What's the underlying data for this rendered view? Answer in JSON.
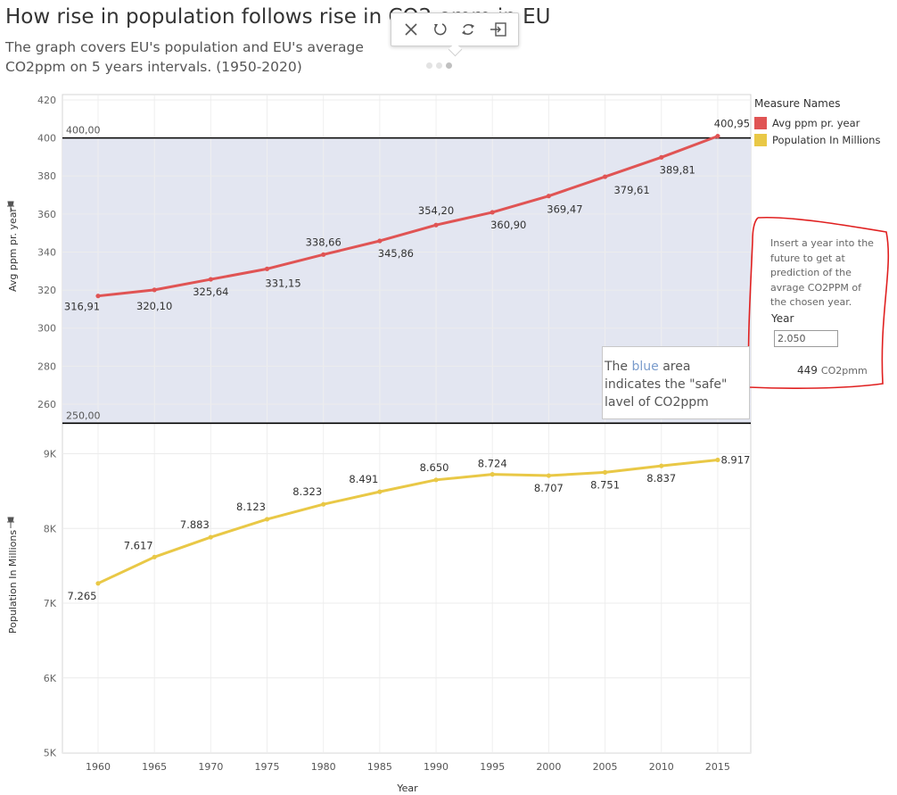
{
  "header": {
    "title": "How rise in population follows rise in CO2 emm in EU",
    "subtitle": "The graph covers EU's population and EU's average CO2ppm on 5 years intervals. (1950-2020)"
  },
  "toolbar": {
    "items": [
      {
        "icon": "close-icon"
      },
      {
        "icon": "undo-icon"
      },
      {
        "icon": "refresh-icon"
      },
      {
        "icon": "export-icon"
      }
    ],
    "pages": 3,
    "active_page": 3
  },
  "legend": {
    "title": "Measure Names",
    "items": [
      {
        "label": "Avg ppm pr. year",
        "color": "#e05454"
      },
      {
        "label": "Population In Millions",
        "color": "#e9c846"
      }
    ]
  },
  "prediction": {
    "text": "Insert a year into the future to get at prediction of the avrage CO2PPM of the chosen year.",
    "year_label": "Year",
    "year_value": "2.050",
    "result_value": "449",
    "result_unit": "CO2pmm"
  },
  "annotation": {
    "prefix": "The ",
    "highlight": "blue",
    "suffix": " area indicates the \"safe\" lavel of CO2ppm"
  },
  "chart_data": [
    {
      "type": "line",
      "ylabel": "Avg ppm pr. year",
      "ylim": [
        250,
        420
      ],
      "y_ticks": [
        "420",
        "400",
        "380",
        "360",
        "340",
        "320",
        "300",
        "280",
        "260"
      ],
      "y_tick_values": [
        420,
        400,
        380,
        360,
        340,
        320,
        300,
        280,
        260
      ],
      "x": [
        1960,
        1965,
        1970,
        1975,
        1980,
        1985,
        1990,
        1995,
        2000,
        2005,
        2010,
        2015
      ],
      "series": [
        {
          "name": "Avg ppm pr. year",
          "color": "#e05454",
          "values": [
            316.91,
            320.1,
            325.64,
            331.15,
            338.66,
            345.86,
            354.2,
            360.9,
            369.47,
            379.61,
            389.81,
            400.95
          ],
          "labels": [
            "316,91",
            "320,10",
            "325,64",
            "331,15",
            "338,66",
            "345,86",
            "354,20",
            "360,90",
            "369,47",
            "379,61",
            "389,81",
            "400,95"
          ]
        }
      ],
      "reference_band": {
        "from": 250,
        "to": 400,
        "color": "#e3e6f1",
        "label_upper": "400,00",
        "label_lower": "250,00"
      },
      "grid": true
    },
    {
      "type": "line",
      "ylabel": "Population In Millions",
      "xlabel": "Year",
      "ylim": [
        4900,
        9400
      ],
      "y_ticks": [
        "9K",
        "8K",
        "7K",
        "6K",
        "5K"
      ],
      "y_tick_values": [
        9000,
        8000,
        7000,
        6000,
        5000
      ],
      "x": [
        1960,
        1965,
        1970,
        1975,
        1980,
        1985,
        1990,
        1995,
        2000,
        2005,
        2010,
        2015
      ],
      "x_tick_labels": [
        "1960",
        "1965",
        "1970",
        "1975",
        "1980",
        "1985",
        "1990",
        "1995",
        "2000",
        "2005",
        "2010",
        "2015"
      ],
      "series": [
        {
          "name": "Population In Millions",
          "color": "#e9c846",
          "values": [
            7265,
            7617,
            7883,
            8123,
            8323,
            8491,
            8650,
            8724,
            8707,
            8751,
            8837,
            8917
          ],
          "labels": [
            "7.265",
            "7.617",
            "7.883",
            "8.123",
            "8.323",
            "8.491",
            "8.650",
            "8.724",
            "8.707",
            "8.751",
            "8.837",
            "8.917"
          ]
        }
      ],
      "grid": true
    }
  ]
}
